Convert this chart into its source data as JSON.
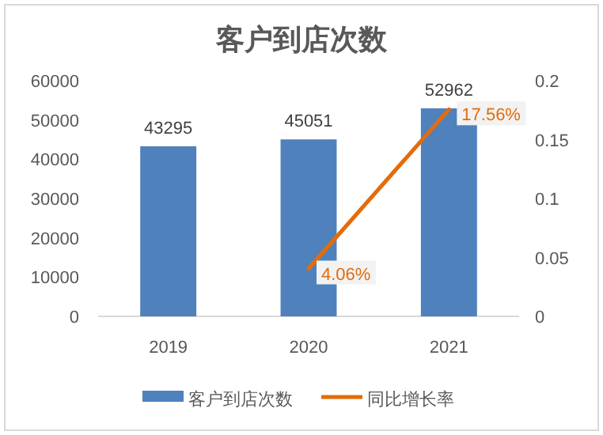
{
  "chart_data": {
    "type": "bar",
    "title": "客户到店次数",
    "categories": [
      "2019",
      "2020",
      "2021"
    ],
    "series": [
      {
        "name": "客户到店次数",
        "color": "#4f81bd",
        "values": [
          43295,
          45051,
          52962
        ],
        "value_labels": [
          "43295",
          "45051",
          "52962"
        ]
      },
      {
        "name": "同比增长率",
        "type": "line",
        "axis": "y2",
        "color": "#e46c0a",
        "values": [
          null,
          0.0406,
          0.1756
        ],
        "value_labels": [
          null,
          "4.06%",
          "17.56%"
        ]
      }
    ],
    "ylim": [
      0,
      60000
    ],
    "yticks": [
      0,
      10000,
      20000,
      30000,
      40000,
      50000,
      60000
    ],
    "y2lim": [
      0,
      0.2
    ],
    "y2ticks": [
      {
        "value": 0,
        "label": "0"
      },
      {
        "value": 0.05,
        "label": "0.05"
      },
      {
        "value": 0.1,
        "label": "0.1"
      },
      {
        "value": 0.15,
        "label": "0.15"
      },
      {
        "value": 0.2,
        "label": "0.2"
      }
    ],
    "legend": "bottom"
  }
}
